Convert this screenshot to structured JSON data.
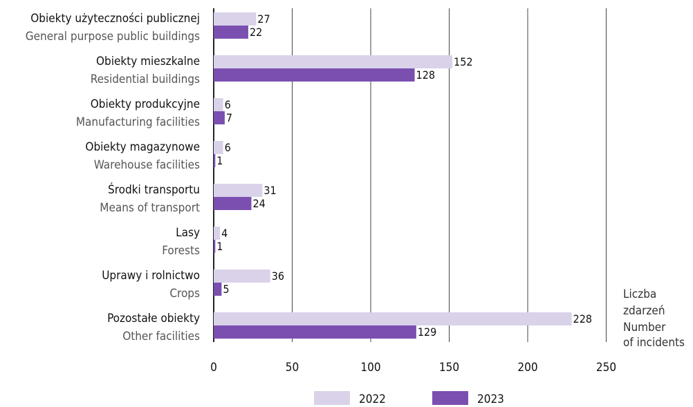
{
  "chart_data": {
    "type": "bar",
    "orientation": "horizontal",
    "categories": [
      {
        "pl": "Obiekty użyteczności publicznej",
        "en": "General purpose public buildings"
      },
      {
        "pl": "Obiekty mieszkalne",
        "en": "Residential buildings"
      },
      {
        "pl": "Obiekty produkcyjne",
        "en": "Manufacturing facilities"
      },
      {
        "pl": "Obiekty magazynowe",
        "en": "Warehouse facilities"
      },
      {
        "pl": "Środki transportu",
        "en": "Means of transport"
      },
      {
        "pl": "Lasy",
        "en": "Forests"
      },
      {
        "pl": "Uprawy i rolnictwo",
        "en": "Crops"
      },
      {
        "pl": "Pozostałe obiekty",
        "en": "Other facilities"
      }
    ],
    "series": [
      {
        "name": "2022",
        "color": "#d9d2e9",
        "values": [
          27,
          152,
          6,
          6,
          31,
          4,
          36,
          228
        ]
      },
      {
        "name": "2023",
        "color": "#7a4fb0",
        "values": [
          22,
          128,
          7,
          1,
          24,
          1,
          5,
          129
        ]
      }
    ],
    "xlim": [
      0,
      250
    ],
    "xticks": [
      0,
      50,
      100,
      150,
      200,
      250
    ],
    "x_unit_label": [
      "Liczba",
      "zdarzeń",
      "Number",
      "of incidents"
    ],
    "grid": "vertical",
    "legend": "bottom-center"
  }
}
